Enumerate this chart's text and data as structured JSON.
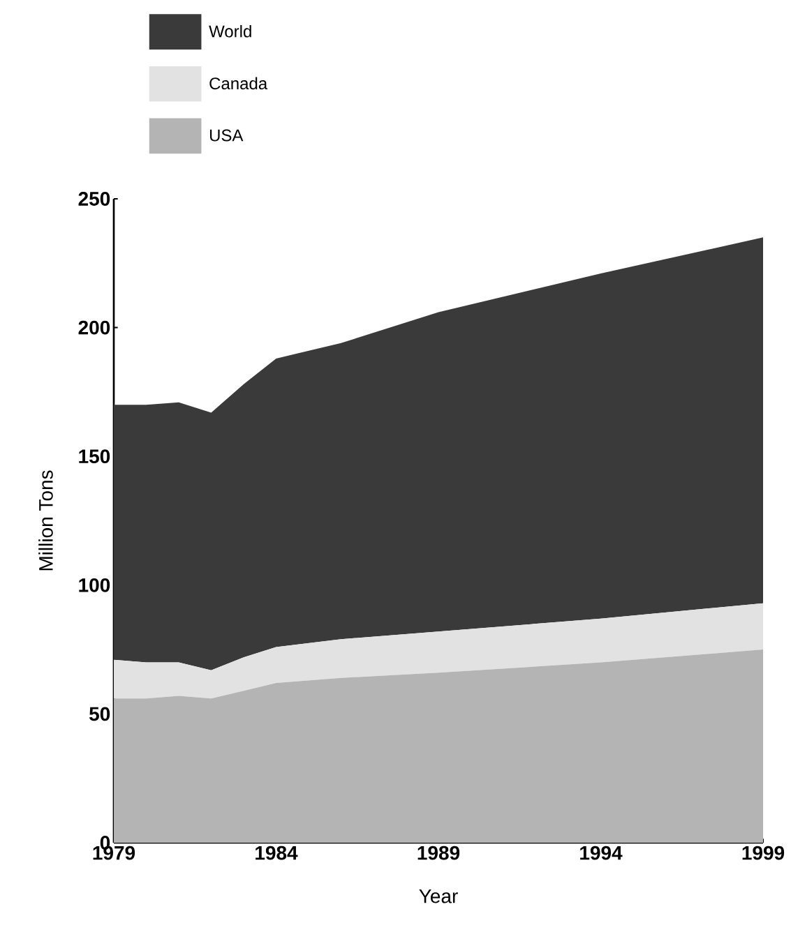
{
  "chart_data": {
    "type": "area",
    "stacked": true,
    "xlabel": "Year",
    "ylabel": "Million Tons",
    "x": [
      1979,
      1980,
      1981,
      1982,
      1983,
      1984,
      1986,
      1989,
      1994,
      1999
    ],
    "series": [
      {
        "name": "USA",
        "color": "#b4b4b4",
        "values": [
          56,
          56,
          57,
          56,
          59,
          62,
          64,
          66,
          70,
          75
        ]
      },
      {
        "name": "Canada",
        "color": "#e2e2e2",
        "values": [
          15,
          14,
          13,
          11,
          13,
          14,
          15,
          16,
          17,
          18
        ]
      },
      {
        "name": "World",
        "color": "#3a3a3a",
        "values": [
          99,
          100,
          101,
          100,
          106,
          112,
          115,
          124,
          134,
          142
        ]
      }
    ],
    "xlim": [
      1979,
      1999
    ],
    "xticks": [
      1979,
      1984,
      1989,
      1994,
      1999
    ],
    "ylim": [
      0,
      250
    ],
    "yticks": [
      0,
      50,
      100,
      150,
      200,
      250
    ],
    "legend": "top left",
    "grid": false
  }
}
